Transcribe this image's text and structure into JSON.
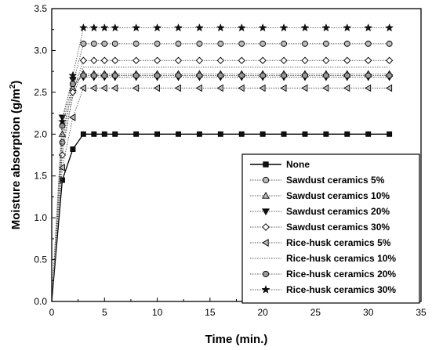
{
  "chart_data": {
    "type": "line",
    "xlabel": "Time (min.)",
    "ylabel_prefix": "Moisture absorption (g/m",
    "ylabel_sup": "2",
    "ylabel_suffix": ")",
    "xlim": [
      0,
      35
    ],
    "ylim": [
      0.0,
      3.5
    ],
    "xticks": [
      0,
      5,
      10,
      15,
      20,
      25,
      30,
      35
    ],
    "yticks": [
      0.0,
      0.5,
      1.0,
      1.5,
      2.0,
      2.5,
      3.0,
      3.5
    ],
    "xtick_labels": [
      "0",
      "5",
      "10",
      "15",
      "20",
      "25",
      "30",
      "35"
    ],
    "ytick_labels": [
      "0.0",
      "0.5",
      "1.0",
      "1.5",
      "2.0",
      "2.5",
      "3.0",
      "3.5"
    ],
    "grid": false,
    "legend_position": "lower-right",
    "x": [
      0,
      1,
      2,
      3,
      4,
      5,
      6,
      8,
      10,
      12,
      14,
      16,
      18,
      20,
      22,
      24,
      26,
      28,
      30,
      32
    ],
    "series": [
      {
        "name": "None",
        "marker": "square",
        "line": "solid",
        "values": [
          0,
          1.45,
          1.82,
          2.0,
          2.0,
          2.0,
          2.0,
          2.0,
          2.0,
          2.0,
          2.0,
          2.0,
          2.0,
          2.0,
          2.0,
          2.0,
          2.0,
          2.0,
          2.0,
          2.0
        ]
      },
      {
        "name": "Sawdust ceramics 5%",
        "marker": "circle",
        "line": "dotted",
        "values": [
          0,
          1.9,
          2.6,
          3.08,
          3.08,
          3.08,
          3.08,
          3.08,
          3.08,
          3.08,
          3.08,
          3.08,
          3.08,
          3.08,
          3.08,
          3.08,
          3.08,
          3.08,
          3.08,
          3.08
        ]
      },
      {
        "name": "Sawdust ceramics 10%",
        "marker": "triangle-up",
        "line": "dotted",
        "values": [
          0,
          2.0,
          2.55,
          2.72,
          2.72,
          2.72,
          2.72,
          2.72,
          2.72,
          2.72,
          2.72,
          2.72,
          2.72,
          2.72,
          2.72,
          2.72,
          2.72,
          2.72,
          2.72,
          2.72
        ]
      },
      {
        "name": "Sawdust ceramics 20%",
        "marker": "triangle-down",
        "line": "dotted",
        "values": [
          0,
          2.2,
          2.65,
          2.68,
          2.68,
          2.68,
          2.68,
          2.68,
          2.68,
          2.68,
          2.68,
          2.68,
          2.68,
          2.68,
          2.68,
          2.68,
          2.68,
          2.68,
          2.68,
          2.68
        ]
      },
      {
        "name": "Sawdust ceramics 30%",
        "marker": "diamond",
        "line": "dotted",
        "values": [
          0,
          1.75,
          2.5,
          2.88,
          2.88,
          2.88,
          2.88,
          2.88,
          2.88,
          2.88,
          2.88,
          2.88,
          2.88,
          2.88,
          2.88,
          2.88,
          2.88,
          2.88,
          2.88,
          2.88
        ]
      },
      {
        "name": "Rice-husk ceramics 5%",
        "marker": "triangle-left",
        "line": "dotted",
        "values": [
          0,
          1.6,
          2.2,
          2.55,
          2.55,
          2.55,
          2.55,
          2.55,
          2.55,
          2.55,
          2.55,
          2.55,
          2.55,
          2.55,
          2.55,
          2.55,
          2.55,
          2.55,
          2.55,
          2.55
        ]
      },
      {
        "name": "Rice-husk ceramics 10%",
        "marker": "none",
        "line": "dotted",
        "values": [
          0,
          1.85,
          2.45,
          2.8,
          2.8,
          2.8,
          2.8,
          2.8,
          2.8,
          2.8,
          2.8,
          2.8,
          2.8,
          2.8,
          2.8,
          2.8,
          2.8,
          2.8,
          2.8,
          2.8
        ]
      },
      {
        "name": "Rice-husk ceramics 20%",
        "marker": "hex-circle",
        "line": "dotted",
        "values": [
          0,
          2.1,
          2.6,
          2.7,
          2.7,
          2.7,
          2.7,
          2.7,
          2.7,
          2.7,
          2.7,
          2.7,
          2.7,
          2.7,
          2.7,
          2.7,
          2.7,
          2.7,
          2.7,
          2.7
        ]
      },
      {
        "name": "Rice-husk ceramics 30%",
        "marker": "star",
        "line": "dotted",
        "values": [
          0,
          2.15,
          2.7,
          3.27,
          3.27,
          3.27,
          3.27,
          3.27,
          3.27,
          3.27,
          3.27,
          3.27,
          3.27,
          3.27,
          3.27,
          3.27,
          3.27,
          3.27,
          3.27,
          3.27
        ]
      }
    ]
  }
}
